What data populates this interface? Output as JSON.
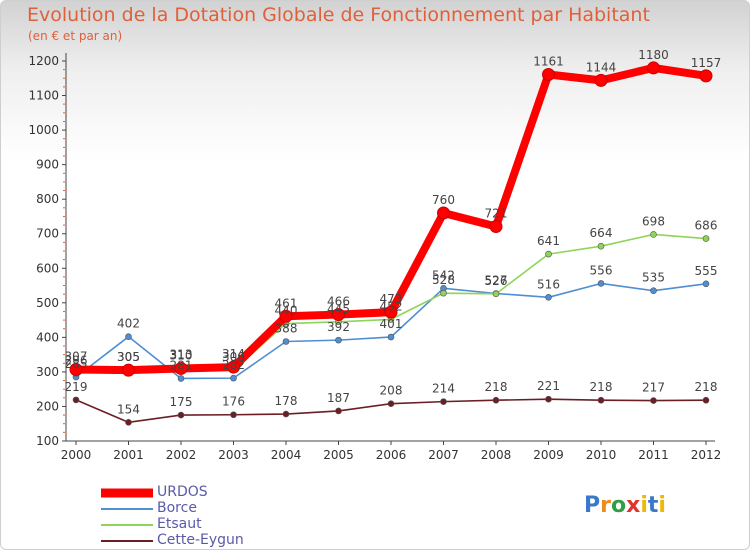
{
  "header": {
    "title": "Evolution de la Dotation Globale de Fonctionnement par Habitant",
    "subtitle": "(en € et par an)"
  },
  "chart_data": {
    "type": "line",
    "title": "Evolution de la Dotation Globale de Fonctionnement par Habitant",
    "subtitle": "(en € et par an)",
    "xlabel": "",
    "ylabel": "",
    "categories": [
      "2000",
      "2001",
      "2002",
      "2003",
      "2004",
      "2005",
      "2006",
      "2007",
      "2008",
      "2009",
      "2010",
      "2011",
      "2012"
    ],
    "ylim": [
      100,
      1200
    ],
    "yticks": [
      100,
      200,
      300,
      400,
      500,
      600,
      700,
      800,
      900,
      1000,
      1100,
      1200
    ],
    "legend_position": "bottom-left",
    "series": [
      {
        "name": "URDOS",
        "color": "#ff0000",
        "values": [
          307,
          305,
          310,
          314,
          461,
          466,
          473,
          760,
          721,
          1161,
          1144,
          1180,
          1157
        ]
      },
      {
        "name": "Borce",
        "color": "#4f8ed0",
        "values": [
          285,
          402,
          281,
          282,
          388,
          392,
          401,
          542,
          527,
          516,
          556,
          535,
          555
        ]
      },
      {
        "name": "Etsaut",
        "color": "#8fd45a",
        "values": [
          296,
          305,
          313,
          306,
          440,
          445,
          452,
          528,
          526,
          641,
          664,
          698,
          686
        ]
      },
      {
        "name": "Cette-Eygun",
        "color": "#6b1f25",
        "values": [
          219,
          154,
          175,
          176,
          178,
          187,
          208,
          214,
          218,
          221,
          218,
          217,
          218
        ]
      }
    ]
  },
  "brand": {
    "letters": [
      "P",
      "r",
      "o",
      "x",
      "i",
      "t",
      "i"
    ],
    "colors": [
      "#3a78c8",
      "#f08a1c",
      "#2f9e44",
      "#e2322b",
      "#f2b705",
      "#3a78c8",
      "#f2b705"
    ]
  }
}
